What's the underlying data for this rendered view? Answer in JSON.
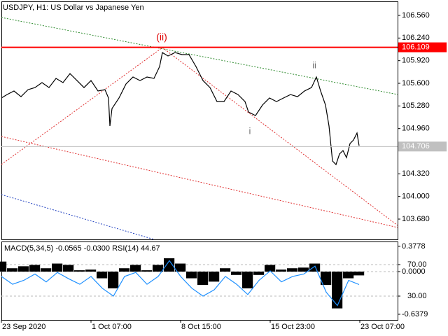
{
  "chart_data": [
    {
      "type": "line",
      "title": "USDJPY, H1:  US Dollar vs Japanese Yen",
      "color": "#000000",
      "x": [
        0,
        8,
        18,
        28,
        38,
        48,
        58,
        68,
        78,
        88,
        98,
        108,
        118,
        128,
        138,
        148,
        153,
        155,
        158,
        168,
        178,
        188,
        198,
        208,
        218,
        226,
        230,
        238,
        248,
        258,
        268,
        278,
        288,
        298,
        308,
        318,
        328,
        338,
        348,
        353,
        363,
        373,
        383,
        393,
        403,
        413,
        423,
        433,
        443,
        450,
        456,
        463,
        468,
        473,
        478,
        483,
        488,
        493,
        498,
        503,
        508,
        511
      ],
      "values": [
        105.392,
        105.441,
        105.491,
        105.411,
        105.51,
        105.54,
        105.61,
        105.54,
        105.669,
        105.61,
        105.738,
        105.639,
        105.54,
        105.639,
        105.491,
        105.51,
        105.392,
        104.996,
        105.243,
        105.392,
        105.59,
        105.689,
        105.639,
        105.689,
        105.669,
        105.837,
        106.035,
        105.986,
        106.035,
        106.006,
        106.006,
        105.837,
        105.639,
        105.54,
        105.342,
        105.342,
        105.491,
        105.441,
        105.342,
        105.194,
        105.144,
        105.293,
        105.392,
        105.342,
        105.392,
        105.441,
        105.411,
        105.491,
        105.54,
        105.689,
        105.491,
        105.293,
        104.996,
        104.501,
        104.451,
        104.6,
        104.649,
        104.55,
        104.748,
        104.798,
        104.897,
        104.718
      ],
      "xlim": [
        0,
        566
      ],
      "ylim": [
        103.393,
        106.758
      ],
      "yticks": [
        {
          "value": 106.56,
          "label": "106.560"
        },
        {
          "value": 106.24,
          "label": "106.240"
        },
        {
          "value": 105.92,
          "label": "105.920"
        },
        {
          "value": 105.6,
          "label": "105.600"
        },
        {
          "value": 105.28,
          "label": "105.280"
        },
        {
          "value": 104.96,
          "label": "104.960"
        },
        {
          "value": 104.32,
          "label": "104.320"
        },
        {
          "value": 104,
          "label": "104.000"
        },
        {
          "value": 103.68,
          "label": "103.680"
        }
      ],
      "levels": [
        {
          "value": 106.109,
          "color": "#ff0000"
        },
        {
          "value": 104.706,
          "color": "#c0c0c0"
        }
      ],
      "annotations": [
        {
          "text": "(ii)",
          "color": "#e00000"
        },
        {
          "text": "ii",
          "color": "#707070"
        },
        {
          "text": "i",
          "color": "#707070"
        }
      ],
      "grid": false
    },
    {
      "type": "bar",
      "title": "MACD(5,34,5) -0.0565 -0.0300 RSI(14) 44.67",
      "x": [
        0,
        16,
        32,
        48,
        64,
        80,
        96,
        112,
        128,
        144,
        160,
        176,
        192,
        208,
        224,
        240,
        256,
        272,
        288,
        304,
        320,
        336,
        352,
        368,
        384,
        400,
        416,
        432,
        448,
        464,
        480,
        496,
        511
      ],
      "series": [
        {
          "color": "#000000",
          "values": [
            0.15,
            0.05,
            0.08,
            0.1,
            0.05,
            0.12,
            0.1,
            0.02,
            0.03,
            -0.1,
            -0.25,
            0.05,
            0.1,
            0.02,
            0.1,
            0.2,
            0.12,
            -0.1,
            -0.2,
            -0.15,
            0.05,
            -0.05,
            -0.25,
            -0.05,
            0.1,
            0.03,
            0.05,
            0.06,
            0.12,
            -0.2,
            -0.55,
            -0.1,
            -0.0565
          ]
        },
        {
          "color": "#1e90ff",
          "axis": "y2",
          "values": [
            55,
            45,
            50,
            58,
            48,
            60,
            52,
            45,
            55,
            40,
            30,
            55,
            60,
            45,
            55,
            75,
            55,
            40,
            30,
            38,
            55,
            45,
            32,
            50,
            62,
            48,
            55,
            58,
            68,
            35,
            18,
            50,
            44.67
          ]
        }
      ],
      "xlim": [
        0,
        566
      ],
      "ylim": [
        -0.722,
        0.45
      ],
      "yticks": [
        0.3778,
        {
          "value": 0,
          "label": "0.0000"
        },
        -0.6379
      ],
      "y2lim": [
        -0.2,
        99.3
      ],
      "y2ticks": [
        {
          "value": 70,
          "label": "70.00"
        },
        {
          "value": 30,
          "label": "30.00"
        }
      ],
      "xticks": [
        {
          "value": 0,
          "label": "23 Sep 2020"
        },
        {
          "value": 128,
          "label": "1 Oct 07:00"
        },
        {
          "value": 256,
          "label": "8 Oct 15:00"
        },
        {
          "value": 384,
          "label": "15 Oct 23:00"
        },
        {
          "value": 512,
          "label": "23 Oct 07:00"
        }
      ],
      "grid": true
    }
  ]
}
